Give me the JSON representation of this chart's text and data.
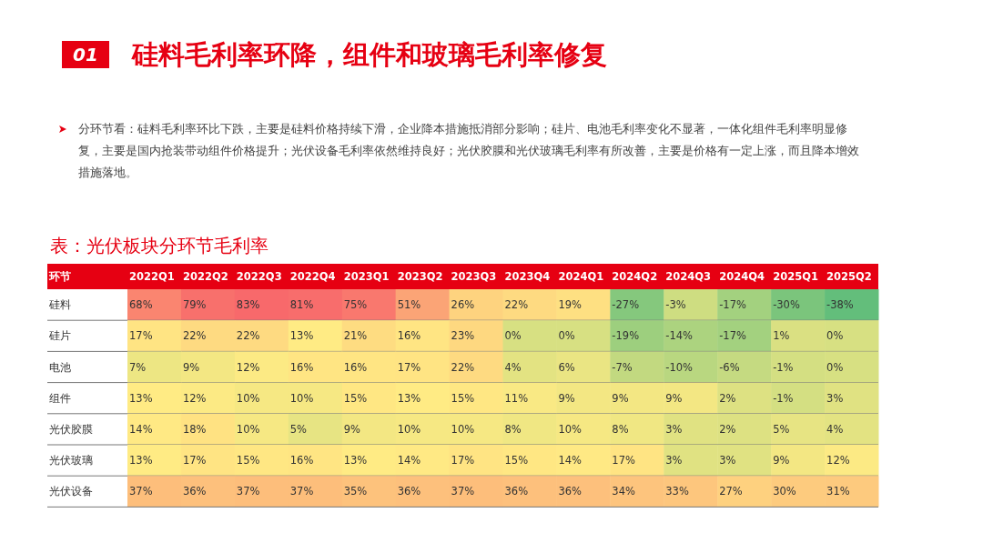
{
  "chart_data": {
    "type": "heatmap",
    "title": "硅料毛利率环降，组件和玻璃毛利率修复",
    "subtitle": "分环节看：硅料毛利率环比下跌，主要是硅料价格持续下滑，企业降本措施抵消部分影响；硅片、电池毛利率变化不显著，一体化组件毛利率明显修复，主要是国内抢装带动组件价格提升；光伏设备毛利率依然维持良好；光伏胶膜和光伏玻璃毛利率有所改善，主要是价格有一定上涨，而且降本增效措施落地。",
    "annotations": [
      "01",
      "表：光伏板块分环节毛利率"
    ],
    "ylabel": "环节",
    "categories": [
      "2022Q1",
      "2022Q2",
      "2022Q3",
      "2022Q4",
      "2023Q1",
      "2023Q2",
      "2023Q3",
      "2023Q4",
      "2024Q1",
      "2024Q2",
      "2024Q3",
      "2024Q4",
      "2025Q1",
      "2025Q2"
    ],
    "y_categories": [
      "硅料",
      "硅片",
      "电池",
      "组件",
      "光伏胶膜",
      "光伏玻璃",
      "光伏设备"
    ],
    "cells": [
      [
        68,
        79,
        83,
        81,
        75,
        51,
        26,
        22,
        19,
        -27,
        -3,
        -17,
        -30,
        -38
      ],
      [
        17,
        22,
        22,
        13,
        21,
        16,
        23,
        0,
        0,
        -19,
        -14,
        -17,
        1,
        0
      ],
      [
        7,
        9,
        12,
        16,
        16,
        17,
        22,
        4,
        6,
        -7,
        -10,
        -6,
        -1,
        0
      ],
      [
        13,
        12,
        10,
        10,
        15,
        13,
        15,
        11,
        9,
        9,
        9,
        2,
        -1,
        3
      ],
      [
        14,
        18,
        10,
        5,
        9,
        10,
        10,
        8,
        10,
        8,
        3,
        2,
        5,
        4
      ],
      [
        13,
        17,
        15,
        16,
        13,
        14,
        17,
        15,
        14,
        17,
        3,
        3,
        9,
        12
      ],
      [
        37,
        36,
        37,
        37,
        35,
        36,
        37,
        36,
        36,
        34,
        33,
        27,
        30,
        31
      ]
    ],
    "cell_labels": [
      [
        "68%",
        "79%",
        "83%",
        "81%",
        "75%",
        "51%",
        "26%",
        "22%",
        "19%",
        "-27%",
        "-3%",
        "-17%",
        "-30%",
        "-38%"
      ],
      [
        "17%",
        "22%",
        "22%",
        "13%",
        "21%",
        "16%",
        "23%",
        "0%",
        "0%",
        "-19%",
        "-14%",
        "-17%",
        "1%",
        "0%"
      ],
      [
        "7%",
        "9%",
        "12%",
        "16%",
        "16%",
        "17%",
        "22%",
        "4%",
        "6%",
        "-7%",
        "-10%",
        "-6%",
        "-1%",
        "0%"
      ],
      [
        "13%",
        "12%",
        "10%",
        "10%",
        "15%",
        "13%",
        "15%",
        "11%",
        "9%",
        "9%",
        "9%",
        "2%",
        "-1%",
        "3%"
      ],
      [
        "14%",
        "18%",
        "10%",
        "5%",
        "9%",
        "10%",
        "10%",
        "8%",
        "10%",
        "8%",
        "3%",
        "2%",
        "5%",
        "4%"
      ],
      [
        "13%",
        "17%",
        "15%",
        "16%",
        "13%",
        "14%",
        "17%",
        "15%",
        "14%",
        "17%",
        "3%",
        "3%",
        "9%",
        "12%"
      ],
      [
        "37%",
        "36%",
        "37%",
        "37%",
        "35%",
        "36%",
        "37%",
        "36%",
        "36%",
        "34%",
        "33%",
        "27%",
        "30%",
        "31%"
      ]
    ]
  }
}
